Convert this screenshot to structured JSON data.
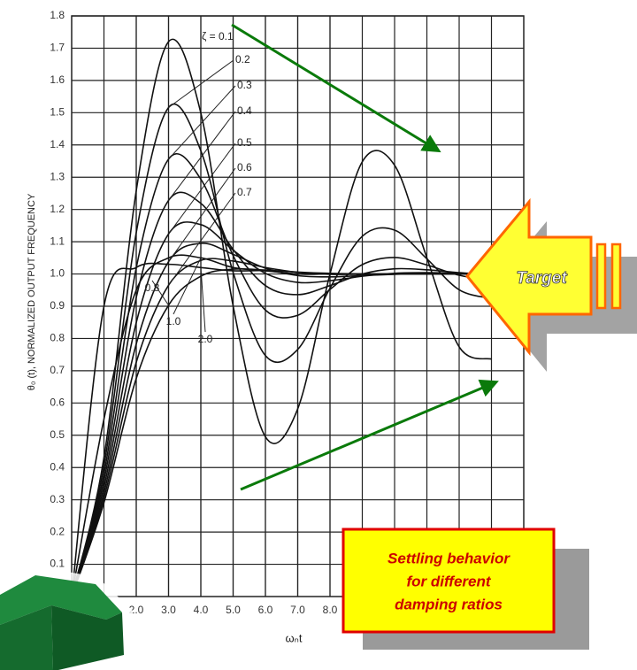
{
  "chart_data": {
    "type": "line",
    "x": [
      0,
      1,
      2,
      3,
      4,
      5,
      6,
      7,
      8,
      9,
      10,
      11,
      12,
      13
    ],
    "series": [
      {
        "name": "ζ = 0.1",
        "color": "#111111",
        "values": [
          0,
          0.431,
          1.258,
          1.72,
          1.499,
          0.901,
          0.495,
          0.582,
          1.0,
          1.348,
          1.337,
          1.05,
          0.774,
          0.736
        ]
      },
      {
        "name": "0.2",
        "color": "#111111",
        "values": [
          0,
          0.405,
          1.128,
          1.516,
          1.382,
          1.005,
          0.747,
          0.766,
          0.956,
          1.117,
          1.136,
          1.047,
          0.951,
          0.924
        ]
      },
      {
        "name": "0.3",
        "color": "#111111",
        "values": [
          0,
          0.381,
          1.019,
          1.356,
          1.294,
          1.057,
          0.888,
          0.872,
          0.952,
          1.029,
          1.051,
          1.028,
          0.996,
          0.981
        ]
      },
      {
        "name": "0.4",
        "color": "#111111",
        "values": [
          0,
          0.36,
          0.927,
          1.228,
          1.219,
          1.076,
          0.964,
          0.936,
          0.964,
          1.0,
          1.016,
          1.013,
          1.004,
          0.998
        ]
      },
      {
        "name": "0.5",
        "color": "#111111",
        "values": [
          0,
          0.34,
          0.849,
          1.124,
          1.153,
          1.074,
          1.002,
          0.974,
          0.979,
          0.993,
          1.002,
          1.004,
          1.002,
          1.0
        ]
      },
      {
        "name": "0.6",
        "color": "#111111",
        "values": [
          0,
          0.322,
          0.783,
          1.038,
          1.095,
          1.061,
          1.018,
          0.995,
          0.991,
          0.995,
          0.999,
          1.001,
          1.0,
          1.0
        ]
      },
      {
        "name": "0.7",
        "color": "#111111",
        "values": [
          0,
          0.306,
          0.726,
          0.965,
          1.042,
          1.04,
          1.02,
          1.005,
          0.999,
          0.999,
          1.0,
          1.0,
          1.0,
          1.0
        ]
      },
      {
        "name": "0.8",
        "color": "#111111",
        "values": [
          0,
          0.291,
          0.676,
          0.903,
          0.993,
          1.015,
          1.012,
          1.006,
          1.002,
          1.0,
          1.0,
          1.0,
          1.0,
          1.0
        ]
      },
      {
        "name": "1.0",
        "color": "#111111",
        "values": [
          0,
          0.55,
          0.95,
          1.05,
          1.05,
          1.02,
          1.01,
          1.0,
          1.0,
          1.0,
          1.0,
          1.0,
          1.0,
          1.0
        ]
      },
      {
        "name": "2.0",
        "color": "#111111",
        "values": [
          0,
          0.9,
          1.02,
          1.03,
          1.02,
          1.01,
          1.01,
          1.0,
          1.0,
          1.0,
          1.0,
          1.0,
          1.0,
          1.0
        ]
      }
    ],
    "xlim": [
      0,
      14
    ],
    "ylim": [
      0,
      1.8
    ],
    "xticks": [
      {
        "value": 2,
        "label": "2.0"
      },
      {
        "value": 3,
        "label": "3.0"
      },
      {
        "value": 4,
        "label": "4.0"
      },
      {
        "value": 5,
        "label": "5.0"
      },
      {
        "value": 6,
        "label": "6.0"
      },
      {
        "value": 7,
        "label": "7.0"
      },
      {
        "value": 8,
        "label": "8.0"
      }
    ],
    "yticks": [
      0.1,
      0.2,
      0.3,
      0.4,
      0.5,
      0.6,
      0.7,
      0.8,
      0.9,
      {
        "value": 1,
        "label": "1.0"
      },
      1.1,
      1.2,
      1.3,
      1.4,
      1.5,
      1.6,
      1.7,
      1.8
    ],
    "x_label": "ωₙt",
    "y_label": "θ₀ (t), NORMALIZED OUTPUT FREQUENCY",
    "grid": true,
    "annotations": {
      "target": "Target",
      "note": [
        "Settling behavior",
        "for different",
        "damping ratios"
      ]
    }
  }
}
